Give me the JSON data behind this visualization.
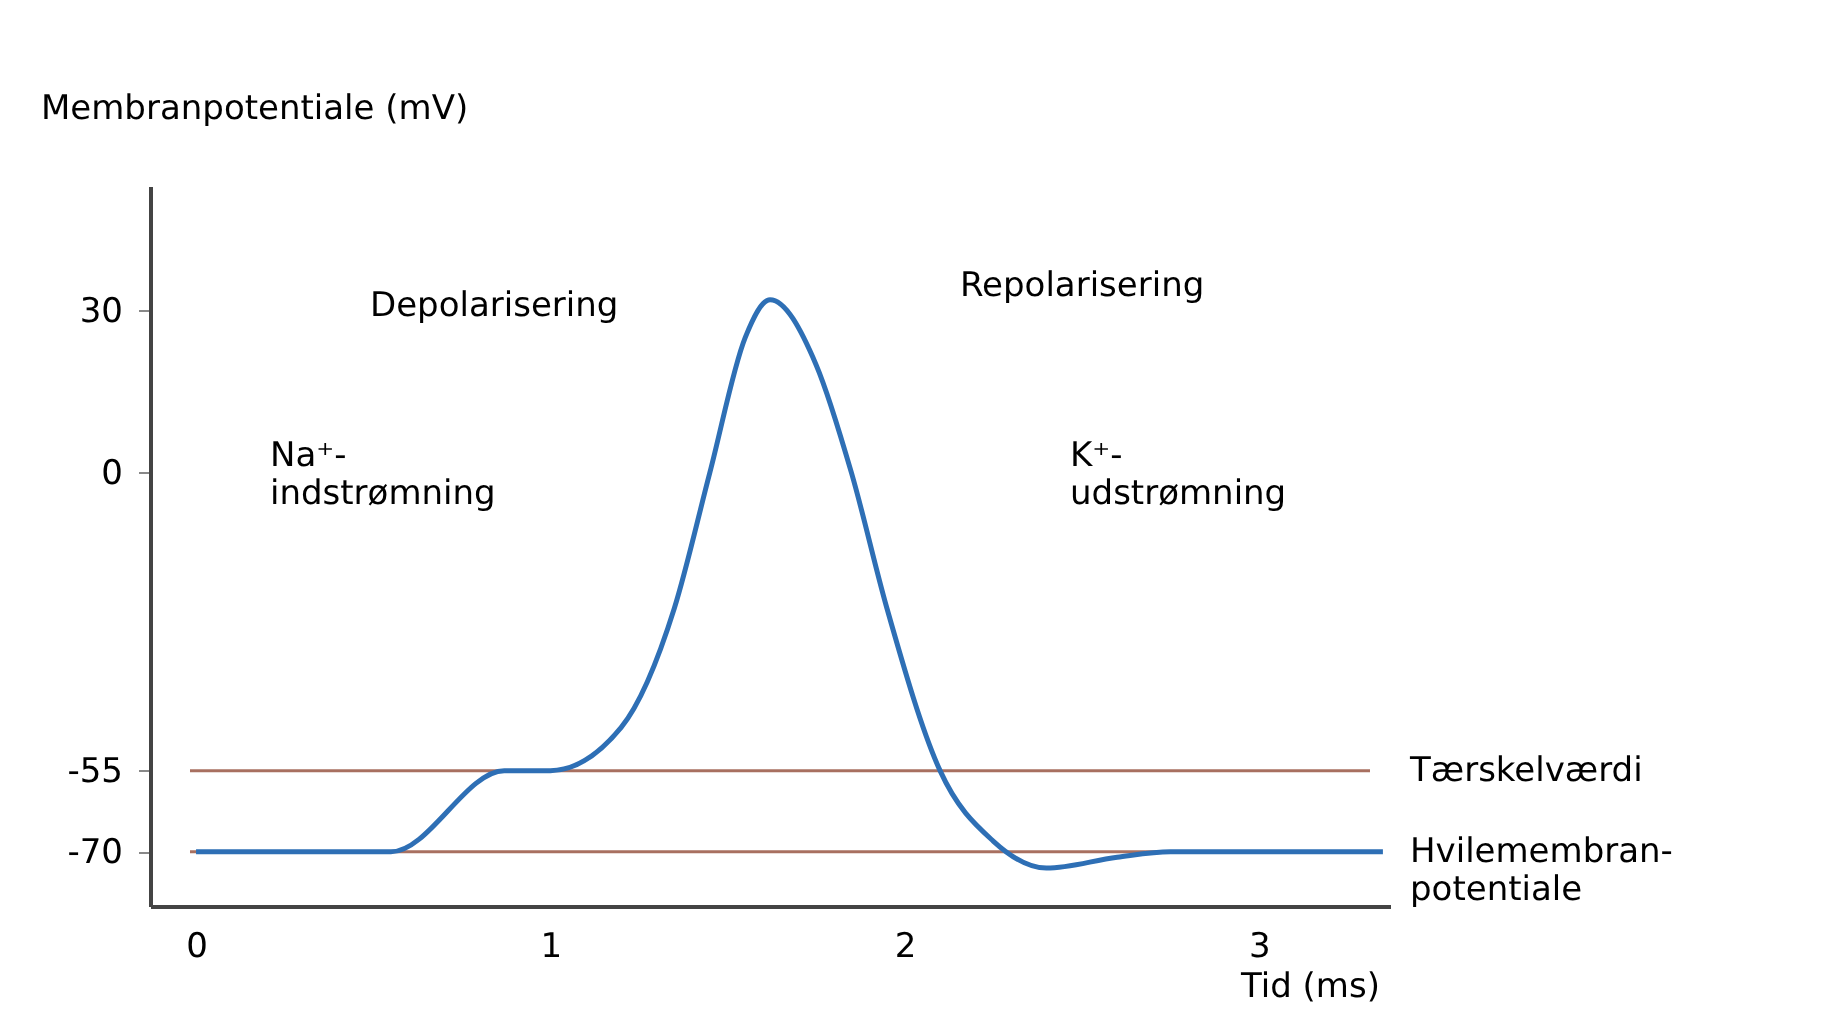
{
  "chart_data": {
    "type": "line",
    "xlabel": "Tid (ms)",
    "ylabel": "Membranpotentiale (mV)",
    "x": [
      0,
      0.55,
      0.87,
      1.0,
      1.2,
      1.35,
      1.45,
      1.55,
      1.62,
      1.75,
      1.85,
      1.95,
      2.1,
      2.25,
      2.4,
      2.6,
      2.75,
      3.35
    ],
    "series": [
      {
        "color": "#2e6fb5",
        "values": [
          -70,
          -70,
          -55,
          -55,
          -47,
          -25,
          0,
          25,
          32,
          20,
          0,
          -25,
          -55,
          -68,
          -73,
          -71,
          -70,
          -70
        ]
      }
    ],
    "xlim": [
      -0.13,
      3.37
    ],
    "ylim": [
      -80,
      53
    ],
    "xticks": [
      0,
      1,
      2,
      3
    ],
    "yticks": [
      30,
      0,
      -55,
      -70
    ],
    "grid": false,
    "marker": "none",
    "line_style": "solid",
    "ref_lines": [
      {
        "axis": "y",
        "value": -55,
        "label": "Tærskelværdi",
        "color": "#a87060"
      },
      {
        "axis": "y",
        "value": -70,
        "label": "Hvilemembran-\npotentiale",
        "color": "#a87060"
      }
    ],
    "annotations": [
      "Depolarisering",
      "Repolarisering",
      "Na⁺-\nindstrømning",
      "K⁺-\nudstrømning"
    ]
  }
}
